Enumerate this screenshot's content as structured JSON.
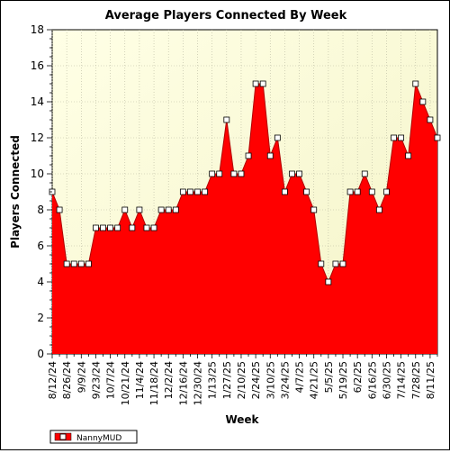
{
  "chart_data": {
    "type": "area",
    "title": "Average Players Connected By Week",
    "xlabel": "Week",
    "ylabel": "Players Connected",
    "ylim": [
      0,
      18
    ],
    "yticks": [
      0,
      2,
      4,
      6,
      8,
      10,
      12,
      14,
      16,
      18
    ],
    "xtick_labels": [
      "8/12/24",
      "8/26/24",
      "9/9/24",
      "9/23/24",
      "10/7/24",
      "10/21/24",
      "11/4/24",
      "11/18/24",
      "12/2/24",
      "12/16/24",
      "12/30/24",
      "1/13/25",
      "1/27/25",
      "2/10/25",
      "2/24/25",
      "3/10/25",
      "3/24/25",
      "4/7/25",
      "4/21/25",
      "5/5/25",
      "5/19/25",
      "6/2/25",
      "6/16/25",
      "6/30/25",
      "7/14/25",
      "7/28/25",
      "8/11/25"
    ],
    "grid": true,
    "legend_position": "bottom-left",
    "series": [
      {
        "name": "NannyMUD",
        "color": "#ff0000",
        "values": [
          9,
          8,
          5,
          5,
          5,
          5,
          7,
          7,
          7,
          7,
          8,
          7,
          8,
          7,
          7,
          8,
          8,
          8,
          9,
          9,
          9,
          9,
          10,
          10,
          13,
          10,
          10,
          11,
          15,
          15,
          11,
          12,
          9,
          10,
          10,
          9,
          8,
          5,
          4,
          5,
          5,
          9,
          9,
          10,
          9,
          8,
          9,
          12,
          12,
          11,
          15,
          14,
          13,
          12
        ]
      }
    ]
  }
}
